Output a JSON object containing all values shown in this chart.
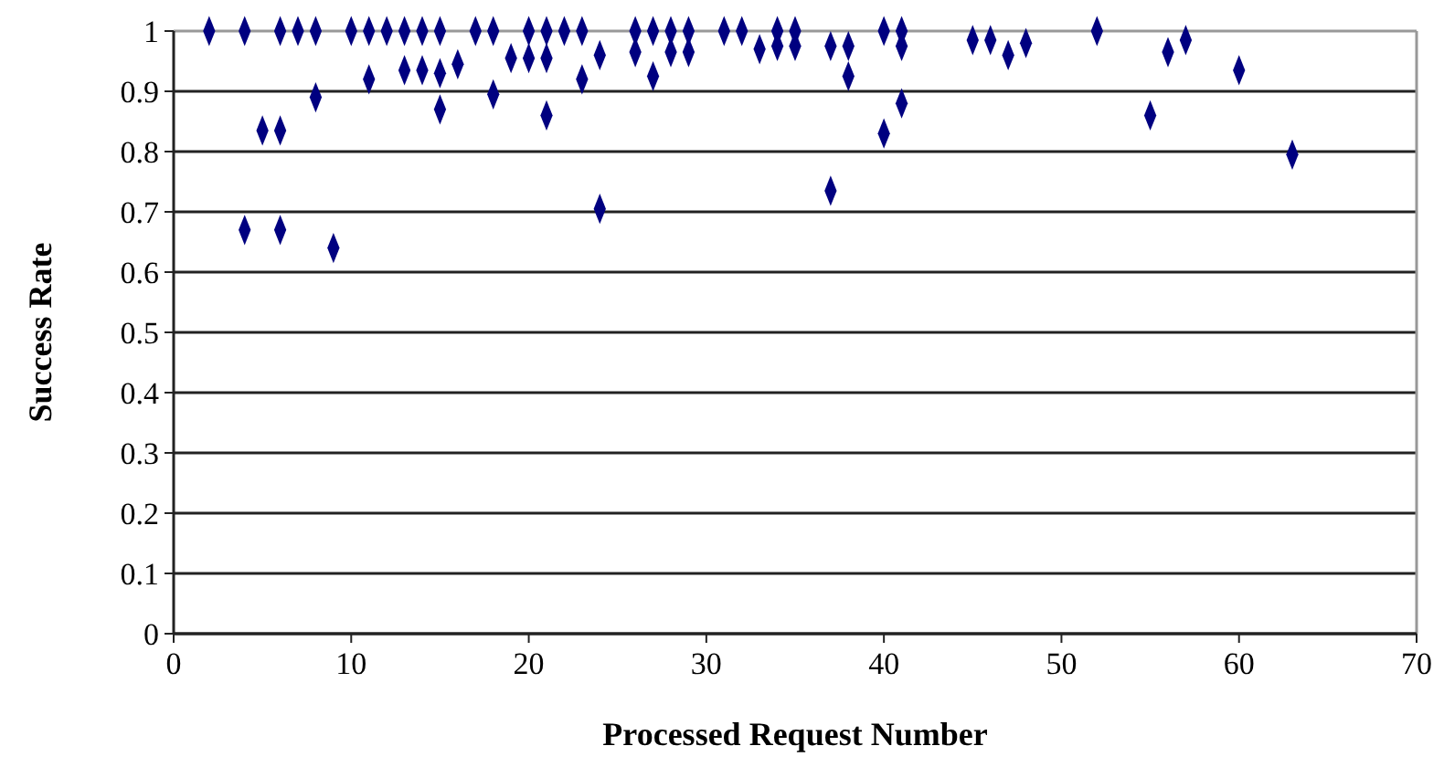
{
  "chart_data": {
    "type": "scatter",
    "xlabel": "Processed Request Number",
    "ylabel": "Success Rate",
    "xlim": [
      0,
      70
    ],
    "xticks": [
      0,
      10,
      20,
      30,
      40,
      50,
      60,
      70
    ],
    "ylim": [
      0,
      1
    ],
    "yticks": [
      0,
      0.1,
      0.2,
      0.3,
      0.4,
      0.5,
      0.6,
      0.7,
      0.8,
      0.9,
      1
    ],
    "grid": "y",
    "marker": "diamond",
    "series": [
      {
        "color": "#000080",
        "x": [
          2,
          4,
          6,
          7,
          8,
          10,
          11,
          12,
          13,
          14,
          15,
          17,
          18,
          20,
          21,
          22,
          23,
          26,
          27,
          28,
          29,
          31,
          32,
          34,
          35,
          40,
          41,
          52,
          4,
          6,
          5,
          6,
          8,
          9,
          11,
          13,
          14,
          15,
          15,
          16,
          18,
          19,
          20,
          21,
          21,
          23,
          24,
          24,
          26,
          27,
          28,
          29,
          33,
          34,
          35,
          37,
          38,
          38,
          37,
          40,
          41,
          41,
          45,
          46,
          47,
          48,
          55,
          56,
          57,
          60,
          63
        ],
        "values": [
          1,
          1,
          1,
          1,
          1,
          1,
          1,
          1,
          1,
          1,
          1,
          1,
          1,
          1,
          1,
          1,
          1,
          1,
          1,
          1,
          1,
          1,
          1,
          1,
          1,
          1,
          1,
          1,
          0.67,
          0.67,
          0.835,
          0.835,
          0.89,
          0.64,
          0.92,
          0.935,
          0.935,
          0.93,
          0.87,
          0.945,
          0.895,
          0.955,
          0.955,
          0.955,
          0.86,
          0.92,
          0.96,
          0.705,
          0.965,
          0.925,
          0.965,
          0.965,
          0.97,
          0.975,
          0.975,
          0.975,
          0.975,
          0.925,
          0.735,
          0.83,
          0.88,
          0.975,
          0.985,
          0.985,
          0.96,
          0.98,
          0.86,
          0.965,
          0.985,
          0.935,
          0.795
        ]
      }
    ]
  }
}
